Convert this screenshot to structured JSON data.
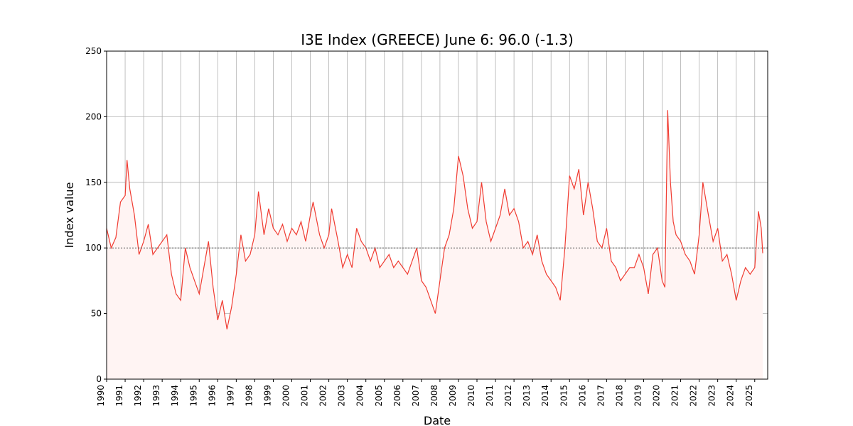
{
  "chart_data": {
    "type": "line",
    "title": "I3E Index (GREECE) June 6: 96.0 (-1.3)",
    "xlabel": "Date",
    "ylabel": "Index value",
    "x": [
      1990,
      1990.25,
      1990.5,
      1990.75,
      1991,
      1991.1,
      1991.25,
      1991.5,
      1991.75,
      1992,
      1992.25,
      1992.5,
      1992.75,
      1993,
      1993.25,
      1993.5,
      1993.75,
      1994,
      1994.25,
      1994.5,
      1994.75,
      1995,
      1995.25,
      1995.5,
      1995.75,
      1996,
      1996.25,
      1996.5,
      1996.75,
      1997,
      1997.25,
      1997.5,
      1997.75,
      1998,
      1998.2,
      1998.5,
      1998.75,
      1999,
      1999.25,
      1999.5,
      1999.75,
      2000,
      2000.25,
      2000.5,
      2000.75,
      2001,
      2001.15,
      2001.5,
      2001.75,
      2002,
      2002.15,
      2002.5,
      2002.75,
      2003,
      2003.25,
      2003.5,
      2003.75,
      2004,
      2004.25,
      2004.5,
      2004.75,
      2005,
      2005.25,
      2005.5,
      2005.75,
      2006,
      2006.25,
      2006.5,
      2006.75,
      2007,
      2007.25,
      2007.5,
      2007.75,
      2008,
      2008.25,
      2008.5,
      2008.75,
      2009,
      2009.25,
      2009.5,
      2009.75,
      2010,
      2010.25,
      2010.5,
      2010.75,
      2011,
      2011.25,
      2011.5,
      2011.75,
      2012,
      2012.25,
      2012.5,
      2012.75,
      2013,
      2013.25,
      2013.5,
      2013.75,
      2014,
      2014.25,
      2014.5,
      2014.75,
      2015,
      2015.25,
      2015.5,
      2015.75,
      2016,
      2016.25,
      2016.5,
      2016.75,
      2017,
      2017.25,
      2017.5,
      2017.75,
      2018,
      2018.25,
      2018.5,
      2018.75,
      2019,
      2019.25,
      2019.5,
      2019.75,
      2020,
      2020.15,
      2020.3,
      2020.45,
      2020.6,
      2020.75,
      2021,
      2021.25,
      2021.5,
      2021.75,
      2022,
      2022.2,
      2022.5,
      2022.75,
      2023,
      2023.25,
      2023.5,
      2023.75,
      2024,
      2024.25,
      2024.5,
      2024.75,
      2025,
      2025.2,
      2025.35,
      2025.43
    ],
    "series": [
      {
        "name": "I3E Index",
        "color": "#f03c32",
        "values": [
          115,
          100,
          108,
          135,
          140,
          167,
          145,
          125,
          95,
          105,
          118,
          95,
          100,
          105,
          110,
          80,
          65,
          60,
          100,
          85,
          75,
          65,
          85,
          105,
          70,
          45,
          60,
          38,
          55,
          80,
          110,
          90,
          95,
          110,
          143,
          110,
          130,
          115,
          110,
          118,
          105,
          115,
          110,
          120,
          105,
          125,
          135,
          110,
          100,
          110,
          130,
          105,
          85,
          95,
          85,
          115,
          105,
          100,
          90,
          100,
          85,
          90,
          95,
          85,
          90,
          85,
          80,
          90,
          100,
          75,
          70,
          60,
          50,
          75,
          100,
          110,
          130,
          170,
          155,
          130,
          115,
          120,
          150,
          120,
          105,
          115,
          125,
          145,
          125,
          130,
          120,
          100,
          105,
          95,
          110,
          90,
          80,
          75,
          70,
          60,
          100,
          155,
          145,
          160,
          125,
          150,
          130,
          105,
          100,
          115,
          90,
          85,
          75,
          80,
          85,
          85,
          95,
          85,
          65,
          95,
          100,
          75,
          70,
          205,
          150,
          120,
          110,
          105,
          95,
          90,
          80,
          110,
          150,
          125,
          105,
          115,
          90,
          95,
          80,
          60,
          75,
          85,
          80,
          85,
          128,
          115,
          96
        ]
      }
    ],
    "fill": "#fff4f3",
    "hline": 100,
    "xlim": [
      1990,
      2025.7
    ],
    "xticks": [
      1990,
      1991,
      1992,
      1993,
      1994,
      1995,
      1996,
      1997,
      1998,
      1999,
      2000,
      2001,
      2002,
      2003,
      2004,
      2005,
      2006,
      2007,
      2008,
      2009,
      2010,
      2011,
      2012,
      2013,
      2014,
      2015,
      2016,
      2017,
      2018,
      2019,
      2020,
      2021,
      2022,
      2023,
      2024,
      2025
    ],
    "ylim": [
      0,
      250
    ],
    "yticks": [
      0,
      50,
      100,
      150,
      200,
      250
    ],
    "grid": true
  }
}
